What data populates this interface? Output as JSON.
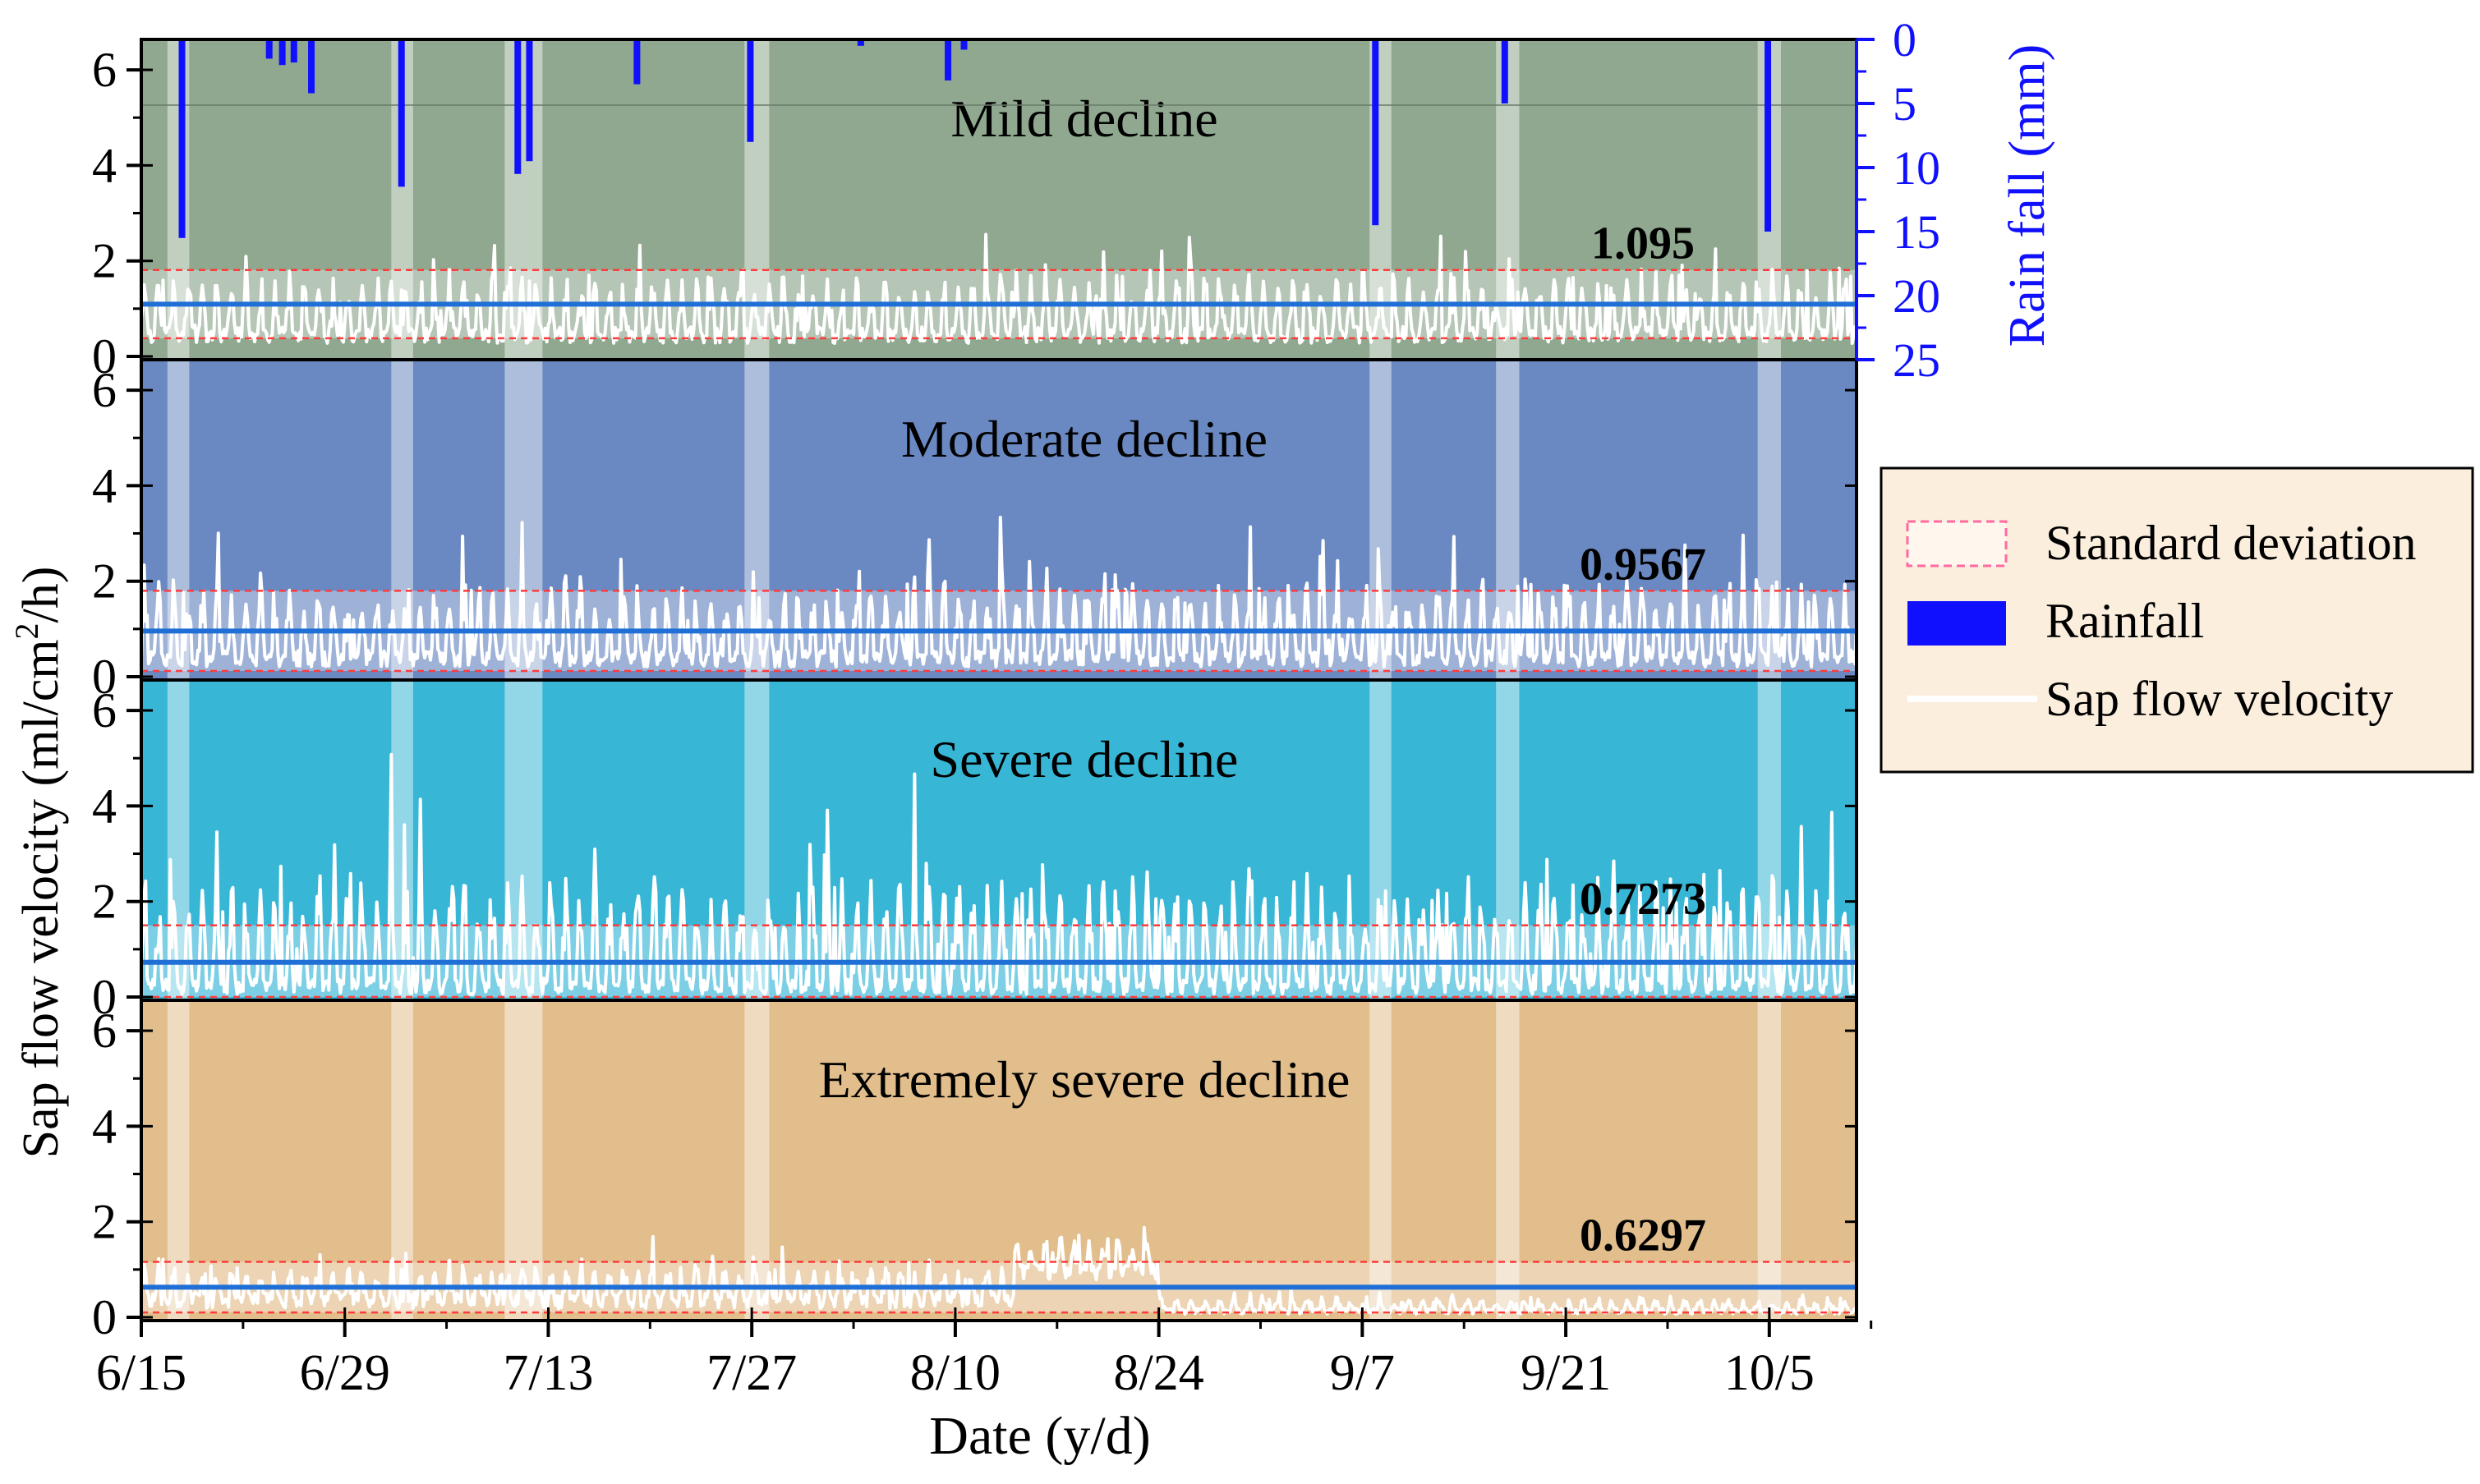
{
  "chart_data": {
    "type": "line",
    "title": "",
    "xlabel": "Date (y/d)",
    "ylabel": "Sap flow velocity (ml/cm²/h)",
    "ylabel_parts": [
      "Sap flow velocity (ml/cm",
      "2",
      "/h)"
    ],
    "xlim": [
      0,
      118
    ],
    "x_ticks": [
      {
        "day": 0,
        "label": "6/15"
      },
      {
        "day": 14,
        "label": "6/29"
      },
      {
        "day": 28,
        "label": "7/13"
      },
      {
        "day": 42,
        "label": "7/27"
      },
      {
        "day": 56,
        "label": "8/10"
      },
      {
        "day": 70,
        "label": "8/24"
      },
      {
        "day": 84,
        "label": "9/7"
      },
      {
        "day": 98,
        "label": "9/21"
      },
      {
        "day": 112,
        "label": "10/5"
      }
    ],
    "ylim": [
      0,
      6.5
    ],
    "y_ticks": [
      0,
      2,
      4,
      6
    ],
    "y_tick_labels": [
      "0",
      "2",
      "4",
      "6"
    ],
    "rain_axis": {
      "label": "Rain fall (mm)",
      "lim": [
        0,
        25
      ],
      "inverted": true,
      "ticks": [
        0,
        5,
        10,
        15,
        20,
        25
      ],
      "tick_labels": [
        "0",
        "5",
        "10",
        "15",
        "20",
        "25"
      ],
      "color": "#1010ff"
    },
    "rain_bands": [
      [
        1.8,
        3.3
      ],
      [
        17.2,
        18.7
      ],
      [
        25.0,
        27.6
      ],
      [
        41.5,
        43.2
      ],
      [
        84.5,
        86.0
      ],
      [
        93.2,
        94.8
      ],
      [
        111.2,
        112.8
      ]
    ],
    "rainfall": [
      {
        "day": 2.8,
        "mm": 15.5
      },
      {
        "day": 8.8,
        "mm": 1.5
      },
      {
        "day": 9.7,
        "mm": 2.0
      },
      {
        "day": 10.5,
        "mm": 1.8
      },
      {
        "day": 11.7,
        "mm": 4.2
      },
      {
        "day": 17.9,
        "mm": 11.5
      },
      {
        "day": 25.9,
        "mm": 10.5
      },
      {
        "day": 26.7,
        "mm": 9.5
      },
      {
        "day": 34.1,
        "mm": 3.5
      },
      {
        "day": 41.9,
        "mm": 8.0
      },
      {
        "day": 49.5,
        "mm": 0.5
      },
      {
        "day": 55.5,
        "mm": 3.2
      },
      {
        "day": 56.6,
        "mm": 0.8
      },
      {
        "day": 84.9,
        "mm": 14.5
      },
      {
        "day": 93.8,
        "mm": 5.0
      },
      {
        "day": 111.9,
        "mm": 15.0
      }
    ],
    "panels": [
      {
        "name": "Mild decline",
        "bg": "#8fa88f",
        "mean": 1.095,
        "mean_label": "1.095",
        "sd_band": [
          0.38,
          1.81
        ],
        "base": 1.0,
        "amp": 0.9,
        "seed": 11,
        "with_rain": true
      },
      {
        "name": "Moderate decline",
        "bg": "#6a89c2",
        "mean": 0.9567,
        "mean_label": "0.9567",
        "sd_band": [
          0.12,
          1.8
        ],
        "base": 0.85,
        "amp": 1.1,
        "seed": 23,
        "with_rain": false
      },
      {
        "name": "Severe decline",
        "bg": "#37b6d6",
        "mean": 0.7273,
        "mean_label": "0.7273",
        "sd_band": [
          0.0,
          1.5
        ],
        "base": 0.5,
        "amp": 1.6,
        "seed": 37,
        "with_rain": false
      },
      {
        "name": "Extremely severe decline",
        "bg": "#e2be8c",
        "mean": 0.6297,
        "mean_label": "0.6297",
        "sd_band": [
          0.1,
          1.16
        ],
        "base": 0.8,
        "amp": 0.5,
        "seed": 53,
        "with_rain": false
      }
    ],
    "legend": {
      "position": "right",
      "entries": [
        {
          "label": "Standard deviation",
          "kind": "sd",
          "color": "#ff6aa0"
        },
        {
          "label": "Rainfall",
          "kind": "rain",
          "color": "#1010ff"
        },
        {
          "label": "Sap flow velocity",
          "kind": "line",
          "color": "#ffffff"
        }
      ],
      "bg": "#fbeedd"
    },
    "colors": {
      "mean_line": "#1f6fd6",
      "sd_line": "#ff3b3b",
      "sap_line": "#ffffff",
      "rain": "#1010ff"
    }
  }
}
